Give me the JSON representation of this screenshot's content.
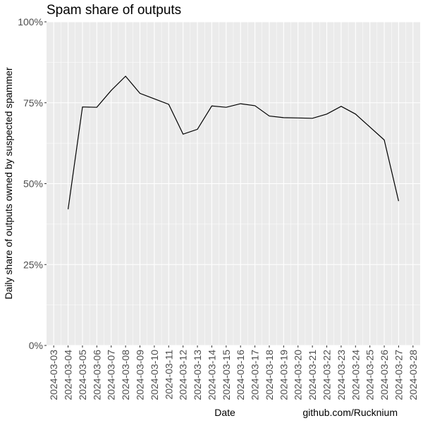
{
  "chart_data": {
    "type": "line",
    "title": "Spam share of outputs",
    "xlabel": "Date",
    "ylabel": "Daily share of outputs owned by suspected spammer",
    "caption": "github.com/Rucknium",
    "x_ticks": [
      "2024-03-03",
      "2024-03-04",
      "2024-03-05",
      "2024-03-06",
      "2024-03-07",
      "2024-03-08",
      "2024-03-09",
      "2024-03-10",
      "2024-03-11",
      "2024-03-12",
      "2024-03-13",
      "2024-03-14",
      "2024-03-15",
      "2024-03-16",
      "2024-03-17",
      "2024-03-18",
      "2024-03-19",
      "2024-03-20",
      "2024-03-21",
      "2024-03-22",
      "2024-03-23",
      "2024-03-24",
      "2024-03-25",
      "2024-03-26",
      "2024-03-27",
      "2024-03-28"
    ],
    "y_ticks": [
      {
        "value": 0,
        "label": "0%"
      },
      {
        "value": 0.25,
        "label": "25%"
      },
      {
        "value": 0.5,
        "label": "50%"
      },
      {
        "value": 0.75,
        "label": "75%"
      },
      {
        "value": 1,
        "label": "100%"
      }
    ],
    "ylim": [
      0,
      1
    ],
    "xlim": [
      "2024-03-02T12:00",
      "2024-03-28T12:00"
    ],
    "grid": true,
    "series": [
      {
        "x": [
          "2024-03-04",
          "2024-03-05",
          "2024-03-06",
          "2024-03-07",
          "2024-03-08",
          "2024-03-09",
          "2024-03-10",
          "2024-03-11",
          "2024-03-12",
          "2024-03-13",
          "2024-03-14",
          "2024-03-15",
          "2024-03-16",
          "2024-03-17",
          "2024-03-18",
          "2024-03-19",
          "2024-03-20",
          "2024-03-21",
          "2024-03-22",
          "2024-03-23",
          "2024-03-24",
          "2024-03-25",
          "2024-03-26",
          "2024-03-27"
        ],
        "y": [
          0.421,
          0.737,
          0.736,
          0.788,
          0.832,
          0.779,
          0.762,
          0.745,
          0.653,
          0.668,
          0.74,
          0.736,
          0.747,
          0.741,
          0.709,
          0.704,
          0.703,
          0.702,
          0.715,
          0.739,
          0.715,
          0.675,
          0.635,
          0.446
        ],
        "color": "#000000"
      }
    ],
    "colors": {
      "panel": "#ebebeb",
      "grid": "#ffffff",
      "line": "#000000",
      "tick_text": "#4d4d4d"
    }
  }
}
